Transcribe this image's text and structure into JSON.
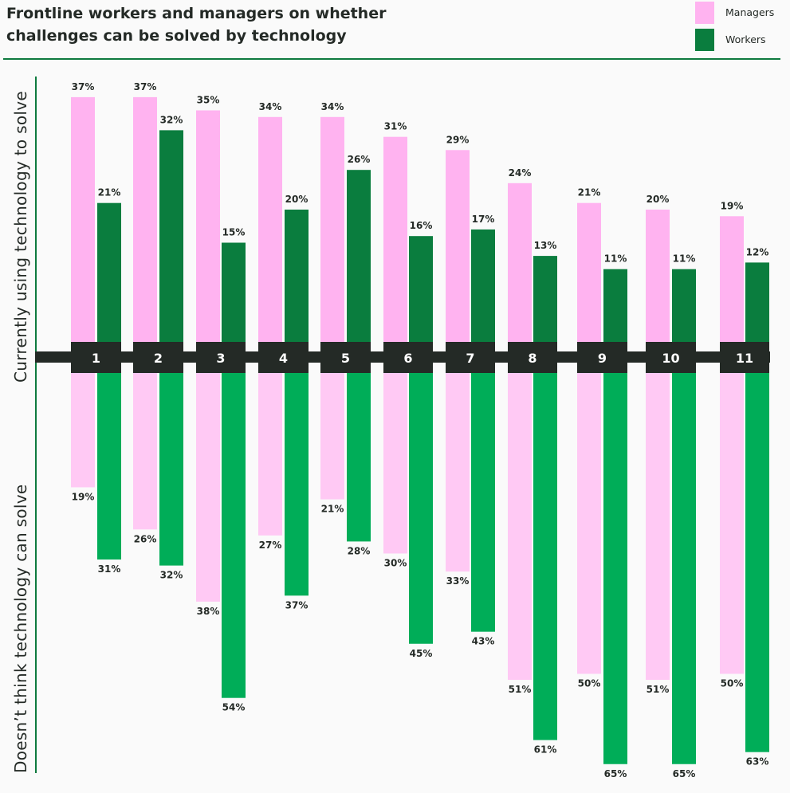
{
  "title_lines": [
    "Frontline workers and managers on whether",
    "challenges can be solved by technology"
  ],
  "legend": [
    {
      "label": "Managers",
      "color": "#ffb3f0"
    },
    {
      "label": "Workers",
      "color": "#0a7d3e"
    }
  ],
  "axis_labels": {
    "upper": "Currently using technology to solve",
    "lower": "Doesn’t think technology can solve"
  },
  "colors": {
    "managers_up": "#ffb3f0",
    "workers_up": "#0a7d3e",
    "managers_down": "#ffc9f4",
    "workers_down": "#00ad58",
    "bar_band": "#242a26"
  },
  "chart_data": {
    "type": "bar",
    "categories": [
      "1",
      "2",
      "3",
      "4",
      "5",
      "6",
      "7",
      "8",
      "9",
      "10",
      "11"
    ],
    "series": [
      {
        "name": "Managers",
        "group": "Currently using technology to solve",
        "values": [
          37,
          37,
          35,
          34,
          34,
          31,
          29,
          24,
          21,
          20,
          19
        ]
      },
      {
        "name": "Workers",
        "group": "Currently using technology to solve",
        "values": [
          21,
          32,
          15,
          20,
          26,
          16,
          17,
          13,
          11,
          11,
          12
        ]
      },
      {
        "name": "Managers",
        "group": "Doesn’t think technology can solve",
        "values": [
          19,
          26,
          38,
          27,
          21,
          30,
          33,
          51,
          50,
          51,
          50
        ]
      },
      {
        "name": "Workers",
        "group": "Doesn’t think technology can solve",
        "values": [
          31,
          32,
          54,
          37,
          28,
          45,
          43,
          61,
          65,
          65,
          63
        ]
      }
    ],
    "value_format": "percent"
  }
}
